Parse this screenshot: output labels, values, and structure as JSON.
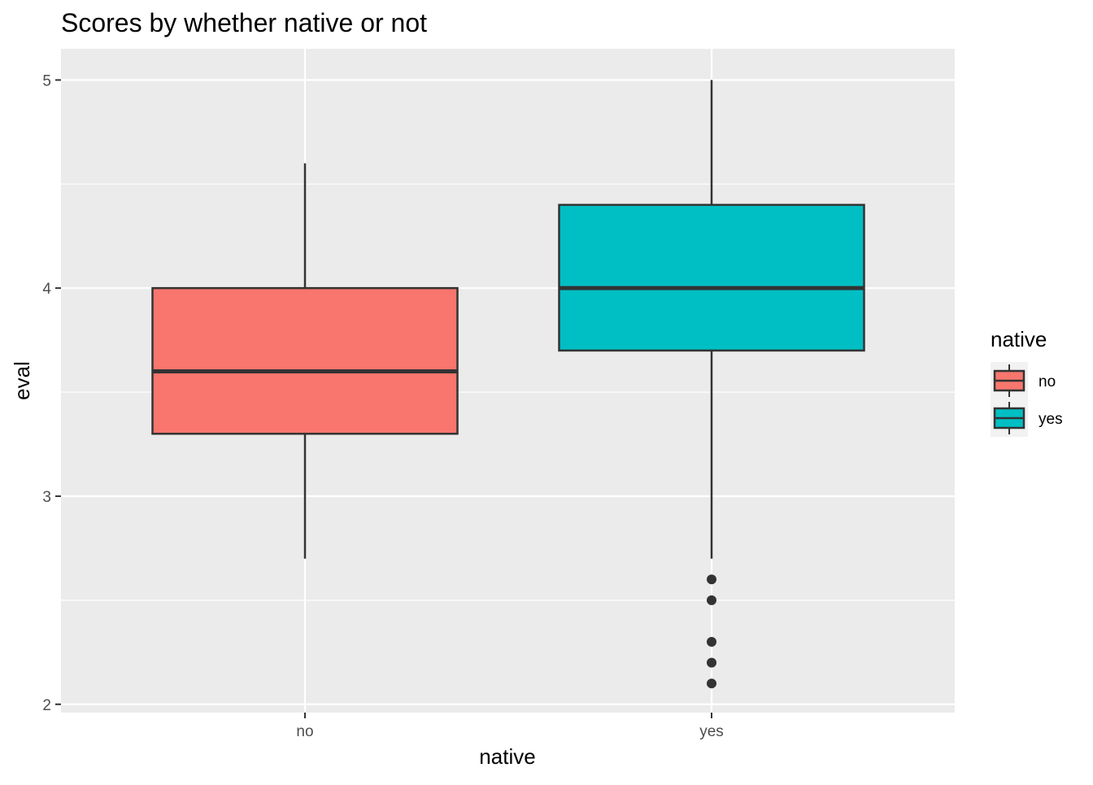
{
  "chart_data": {
    "type": "box",
    "title": "Scores by whether native or not",
    "xlabel": "native",
    "ylabel": "eval",
    "categories": [
      "no",
      "yes"
    ],
    "ylim": [
      1.96,
      5.15
    ],
    "y_ticks": [
      2,
      3,
      4,
      5
    ],
    "y_tick_labels": [
      "2",
      "3",
      "4",
      "5"
    ],
    "grid": true,
    "legend": {
      "title": "native",
      "position": "right",
      "entries": [
        "no",
        "yes"
      ]
    },
    "series": [
      {
        "name": "no",
        "color": "#F8766D",
        "min": 2.7,
        "q1": 3.3,
        "median": 3.6,
        "q3": 4.0,
        "max": 4.6,
        "outliers": []
      },
      {
        "name": "yes",
        "color": "#00BFC4",
        "min": 2.7,
        "q1": 3.7,
        "median": 4.0,
        "q3": 4.4,
        "max": 5.0,
        "outliers": [
          2.6,
          2.5,
          2.3,
          2.2,
          2.1
        ]
      }
    ],
    "colors": {
      "panel_background": "#EBEBEB",
      "grid": "#FFFFFF",
      "box_outline": "#333333",
      "no_fill": "#F8766D",
      "yes_fill": "#00BFC4"
    }
  }
}
